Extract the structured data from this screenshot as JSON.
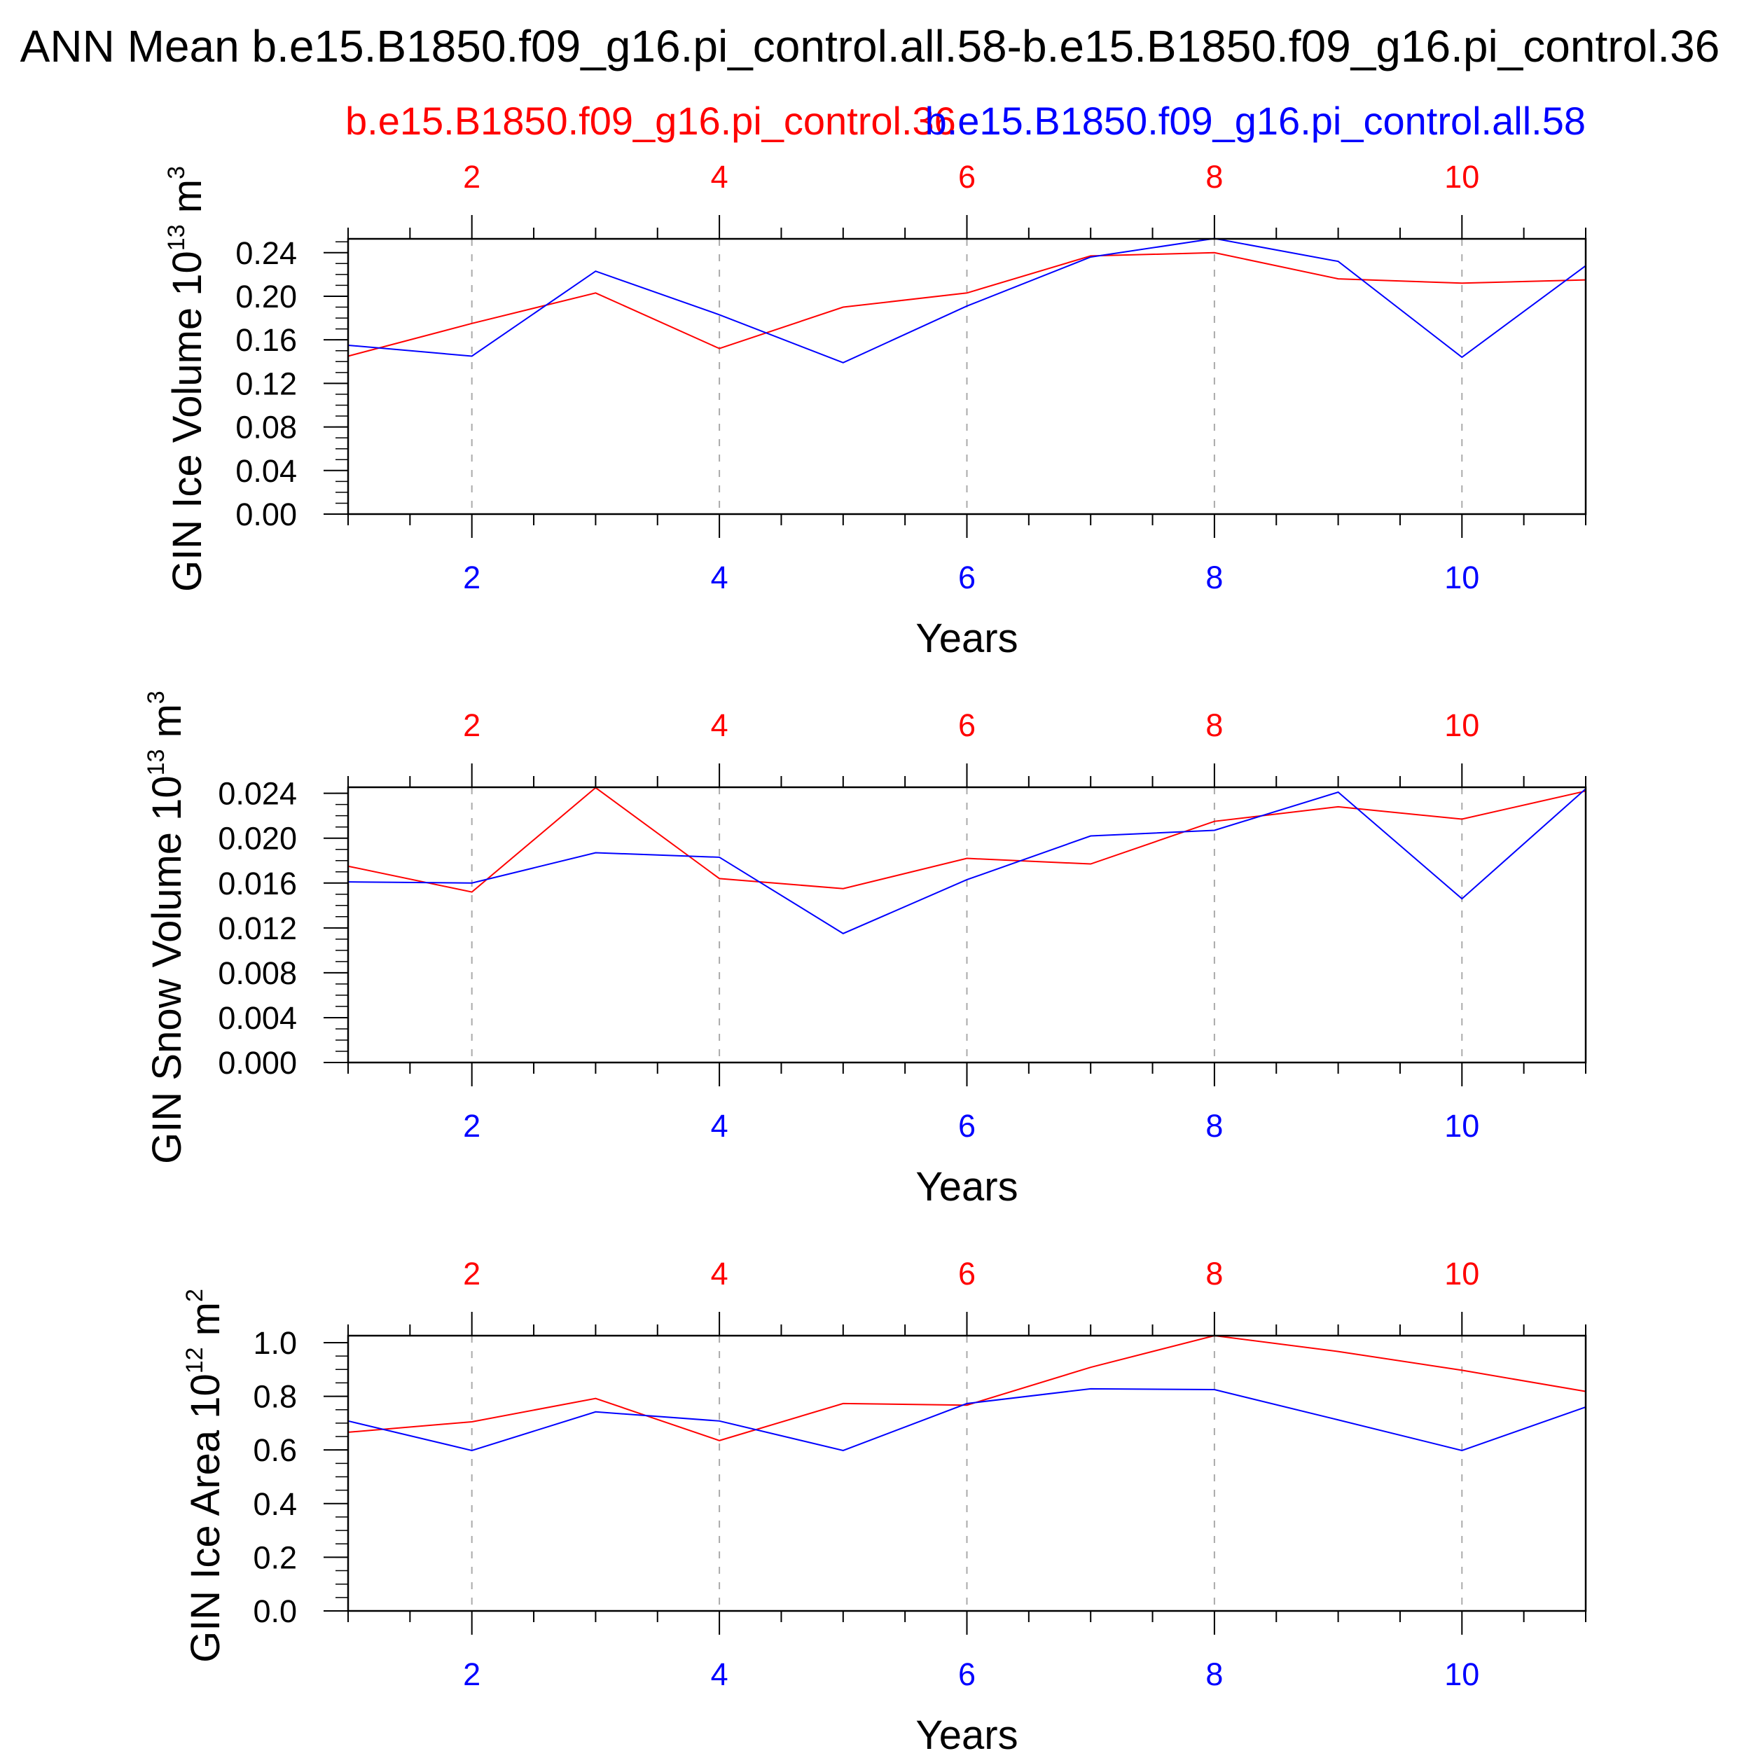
{
  "title": "ANN Mean b.e15.B1850.f09_g16.pi_control.all.58-b.e15.B1850.f09_g16.pi_control.36",
  "subtitle_red": "b.e15.B1850.f09_g16.pi_control.36",
  "subtitle_blue": "b.e15.B1850.f09_g16.pi_control.all.58",
  "colors": {
    "red": "#ff0000",
    "blue": "#0000ff",
    "axis": "#000000",
    "grid": "#999999"
  },
  "chart_data": [
    {
      "type": "line",
      "ylabel": "GIN Ice Volume 10",
      "ylabel_exp": "13",
      "ylabel_unit": " m",
      "ylabel_unit_exp": "3",
      "xlabel": "Years",
      "xlim": [
        1,
        11
      ],
      "ylim": [
        0,
        0.2527
      ],
      "yticks": [
        "0.00",
        "0.04",
        "0.08",
        "0.12",
        "0.16",
        "0.20",
        "0.24"
      ],
      "ytick_values": [
        0,
        0.04,
        0.08,
        0.12,
        0.16,
        0.2,
        0.24
      ],
      "yminor_step": 0.01,
      "xticks": [
        "2",
        "4",
        "6",
        "8",
        "10"
      ],
      "xtick_values": [
        2,
        4,
        6,
        8,
        10
      ],
      "x": [
        1,
        2,
        3,
        4,
        5,
        6,
        7,
        8,
        9,
        10,
        11
      ],
      "series": [
        {
          "name": "b.e15.B1850.f09_g16.pi_control.36",
          "color": "#ff0000",
          "values": [
            0.145,
            0.175,
            0.203,
            0.152,
            0.19,
            0.203,
            0.237,
            0.24,
            0.216,
            0.212,
            0.215
          ]
        },
        {
          "name": "b.e15.B1850.f09_g16.pi_control.all.58",
          "color": "#0000ff",
          "values": [
            0.155,
            0.145,
            0.223,
            0.183,
            0.139,
            0.191,
            0.236,
            0.253,
            0.232,
            0.144,
            0.228
          ]
        }
      ]
    },
    {
      "type": "line",
      "ylabel": "GIN Snow Volume 10",
      "ylabel_exp": "13",
      "ylabel_unit": " m",
      "ylabel_unit_exp": "3",
      "xlabel": "Years",
      "xlim": [
        1,
        11
      ],
      "ylim": [
        0,
        0.02454
      ],
      "yticks": [
        "0.000",
        "0.004",
        "0.008",
        "0.012",
        "0.016",
        "0.020",
        "0.024"
      ],
      "ytick_values": [
        0,
        0.004,
        0.008,
        0.012,
        0.016,
        0.02,
        0.024
      ],
      "yminor_step": 0.001,
      "xticks": [
        "2",
        "4",
        "6",
        "8",
        "10"
      ],
      "xtick_values": [
        2,
        4,
        6,
        8,
        10
      ],
      "x": [
        1,
        2,
        3,
        4,
        5,
        6,
        7,
        8,
        9,
        10,
        11
      ],
      "series": [
        {
          "name": "b.e15.B1850.f09_g16.pi_control.36",
          "color": "#ff0000",
          "values": [
            0.0175,
            0.0152,
            0.0245,
            0.0164,
            0.0155,
            0.0182,
            0.0177,
            0.0215,
            0.0228,
            0.0217,
            0.0242
          ]
        },
        {
          "name": "b.e15.B1850.f09_g16.pi_control.all.58",
          "color": "#0000ff",
          "values": [
            0.0161,
            0.016,
            0.0187,
            0.0183,
            0.0115,
            0.0163,
            0.0202,
            0.0207,
            0.0241,
            0.0146,
            0.0244
          ]
        }
      ]
    },
    {
      "type": "line",
      "ylabel": "GIN Ice Area 10",
      "ylabel_exp": "12",
      "ylabel_unit": " m",
      "ylabel_unit_exp": "2",
      "xlabel": "Years",
      "xlim": [
        1,
        11
      ],
      "ylim": [
        0,
        1.026
      ],
      "yticks": [
        "0.0",
        "0.2",
        "0.4",
        "0.6",
        "0.8",
        "1.0"
      ],
      "ytick_values": [
        0,
        0.2,
        0.4,
        0.6,
        0.8,
        1.0
      ],
      "yminor_step": 0.05,
      "xticks": [
        "2",
        "4",
        "6",
        "8",
        "10"
      ],
      "xtick_values": [
        2,
        4,
        6,
        8,
        10
      ],
      "x": [
        1,
        2,
        3,
        4,
        5,
        6,
        7,
        8,
        9,
        10,
        11
      ],
      "series": [
        {
          "name": "b.e15.B1850.f09_g16.pi_control.36",
          "color": "#ff0000",
          "values": [
            0.666,
            0.705,
            0.792,
            0.635,
            0.773,
            0.767,
            0.908,
            1.026,
            0.967,
            0.897,
            0.818
          ]
        },
        {
          "name": "b.e15.B1850.f09_g16.pi_control.all.58",
          "color": "#0000ff",
          "values": [
            0.708,
            0.598,
            0.742,
            0.708,
            0.598,
            0.773,
            0.828,
            0.825,
            0.712,
            0.598,
            0.76
          ]
        }
      ]
    }
  ]
}
